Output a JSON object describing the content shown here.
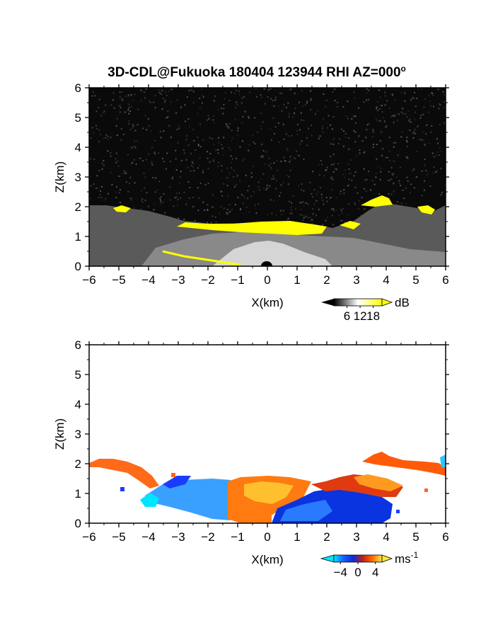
{
  "title": "3D-CDL@Fukuoka 180404 123944 RHI AZ=000",
  "title_degree_sign": "o",
  "chart_data": [
    {
      "type": "heatmap",
      "quantity": "backscatter",
      "xlabel": "X(km)",
      "ylabel": "Z(km)",
      "xlim": [
        -6,
        6
      ],
      "ylim": [
        0,
        6
      ],
      "xticks": [
        -6,
        -5,
        -4,
        -3,
        -2,
        -1,
        0,
        1,
        2,
        3,
        4,
        5,
        6
      ],
      "yticks": [
        0,
        1,
        2,
        3,
        4,
        5,
        6
      ],
      "grid": false,
      "colorbar": {
        "unit": "dB",
        "ticks": [
          6,
          12,
          18
        ],
        "range": [
          0,
          22
        ],
        "colors": [
          "#000000",
          "#ffffff",
          "#ffff00"
        ]
      },
      "aerosol_layer_top_km": [
        [
          -6,
          2.05
        ],
        [
          -5,
          2.0
        ],
        [
          -4,
          1.85
        ],
        [
          -3,
          1.7
        ],
        [
          -2,
          1.5
        ],
        [
          -1,
          1.45
        ],
        [
          0,
          1.5
        ],
        [
          1,
          1.45
        ],
        [
          2,
          1.35
        ],
        [
          3,
          1.9
        ],
        [
          3.7,
          2.35
        ],
        [
          4.5,
          2.0
        ],
        [
          5.5,
          1.9
        ],
        [
          6,
          2.0
        ]
      ],
      "high_signal_band_km": [
        [
          -3,
          1.35,
          1.45
        ],
        [
          -2,
          1.25,
          1.45
        ],
        [
          -1,
          1.1,
          1.5
        ],
        [
          0,
          1.05,
          1.5
        ],
        [
          1,
          1.1,
          1.45
        ],
        [
          2,
          1.25,
          1.35
        ],
        [
          3,
          1.4,
          1.5
        ],
        [
          3.8,
          2.0,
          2.3
        ]
      ]
    },
    {
      "type": "heatmap",
      "quantity": "radial velocity",
      "xlabel": "X(km)",
      "ylabel": "Z(km)",
      "xlim": [
        -6,
        6
      ],
      "ylim": [
        0,
        6
      ],
      "xticks": [
        -6,
        -5,
        -4,
        -3,
        -2,
        -1,
        0,
        1,
        2,
        3,
        4,
        5,
        6
      ],
      "yticks": [
        0,
        1,
        2,
        3,
        4,
        5,
        6
      ],
      "grid": false,
      "colorbar": {
        "unit": "ms",
        "unit_exponent": "-1",
        "ticks": [
          -4,
          0,
          4
        ],
        "range": [
          -5.5,
          5.5
        ],
        "colors": [
          "#00e5ff",
          "#1a5cff",
          "#0a2cd8",
          "#c0201a",
          "#ff6a00",
          "#ffe640"
        ]
      },
      "velocity_regions": [
        {
          "x": [
            -6,
            -3.5
          ],
          "z": [
            1.5,
            2.1
          ],
          "velocity": 3
        },
        {
          "x": [
            -3.2,
            -1.2
          ],
          "z": [
            0.0,
            1.5
          ],
          "velocity": -4
        },
        {
          "x": [
            -1.2,
            1.5
          ],
          "z": [
            0.0,
            1.5
          ],
          "velocity": 4
        },
        {
          "x": [
            0.2,
            4.2
          ],
          "z": [
            0.0,
            1.0
          ],
          "velocity": -4
        },
        {
          "x": [
            2.3,
            4.5
          ],
          "z": [
            0.9,
            1.6
          ],
          "velocity": 2
        },
        {
          "x": [
            3.3,
            6
          ],
          "z": [
            1.7,
            2.4
          ],
          "velocity": 3
        }
      ]
    }
  ]
}
